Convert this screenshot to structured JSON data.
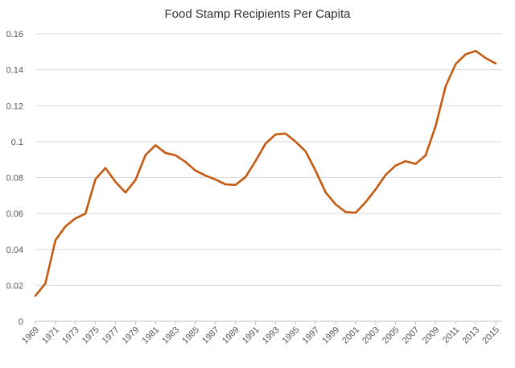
{
  "chart_data": {
    "type": "line",
    "title": "Food Stamp Recipients Per Capita",
    "xlabel": "",
    "ylabel": "",
    "ylim": [
      0,
      0.16
    ],
    "y_ticks": [
      "0",
      "0.02",
      "0.04",
      "0.06",
      "0.08",
      "0.1",
      "0.12",
      "0.14",
      "0.16"
    ],
    "x_tick_labels": [
      "1969",
      "1971",
      "1973",
      "1975",
      "1977",
      "1979",
      "1981",
      "1983",
      "1985",
      "1987",
      "1989",
      "1991",
      "1993",
      "1995",
      "1997",
      "1999",
      "2001",
      "2003",
      "2005",
      "2007",
      "2009",
      "2011",
      "2013",
      "2015"
    ],
    "grid": true,
    "legend": "none",
    "line_color": "#C55A11",
    "grid_color": "#D9D9D9",
    "x": [
      1969,
      1970,
      1971,
      1972,
      1973,
      1974,
      1975,
      1976,
      1977,
      1978,
      1979,
      1980,
      1981,
      1982,
      1983,
      1984,
      1985,
      1986,
      1987,
      1988,
      1989,
      1990,
      1991,
      1992,
      1993,
      1994,
      1995,
      1996,
      1997,
      1998,
      1999,
      2000,
      2001,
      2002,
      2003,
      2004,
      2005,
      2006,
      2007,
      2008,
      2009,
      2010,
      2011,
      2012,
      2013,
      2014,
      2015
    ],
    "series": [
      {
        "values": [
          0.0142,
          0.0211,
          0.0451,
          0.0528,
          0.0573,
          0.0599,
          0.0791,
          0.0853,
          0.0776,
          0.0717,
          0.0786,
          0.0925,
          0.098,
          0.0937,
          0.0924,
          0.0887,
          0.0839,
          0.0811,
          0.0789,
          0.0762,
          0.0759,
          0.0803,
          0.0892,
          0.0989,
          0.104,
          0.1045,
          0.1,
          0.0946,
          0.0838,
          0.0718,
          0.0651,
          0.0608,
          0.0604,
          0.0663,
          0.0734,
          0.0815,
          0.0867,
          0.0891,
          0.0876,
          0.0924,
          0.1087,
          0.1308,
          0.1432,
          0.1486,
          0.1505,
          0.1465,
          0.1435
        ]
      }
    ]
  }
}
